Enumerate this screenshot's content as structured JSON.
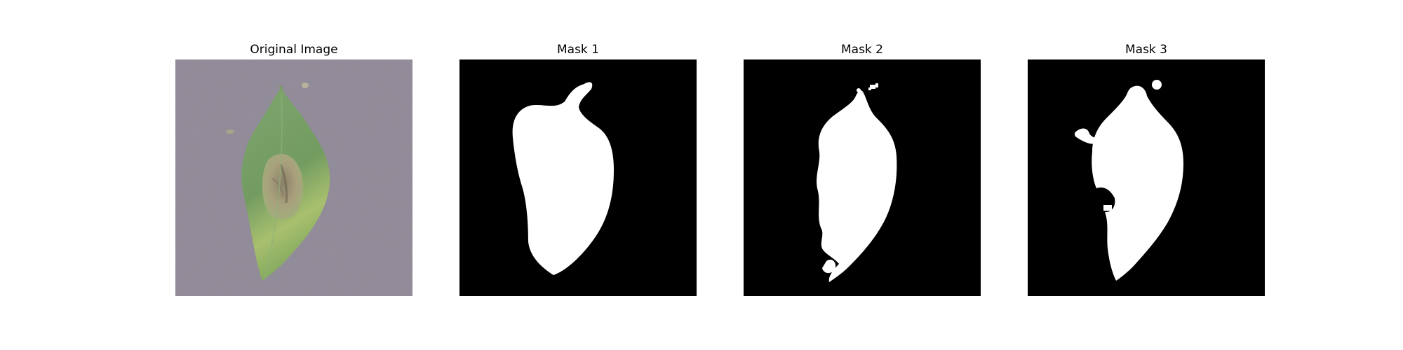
{
  "figure": {
    "background_color": "#ffffff",
    "panels": [
      {
        "title": "Original Image",
        "kind": "photo",
        "subject": "leaf"
      },
      {
        "title": "Mask 1",
        "kind": "mask",
        "foreground": "#ffffff",
        "background": "#000000"
      },
      {
        "title": "Mask 2",
        "kind": "mask",
        "foreground": "#ffffff",
        "background": "#000000"
      },
      {
        "title": "Mask 3",
        "kind": "mask",
        "foreground": "#ffffff",
        "background": "#000000"
      }
    ]
  },
  "colors": {
    "photo_background": "#8e8796",
    "leaf_green": "#6f9a5c",
    "leaf_light": "#a7c06a",
    "lesion": "#a9a07c"
  }
}
